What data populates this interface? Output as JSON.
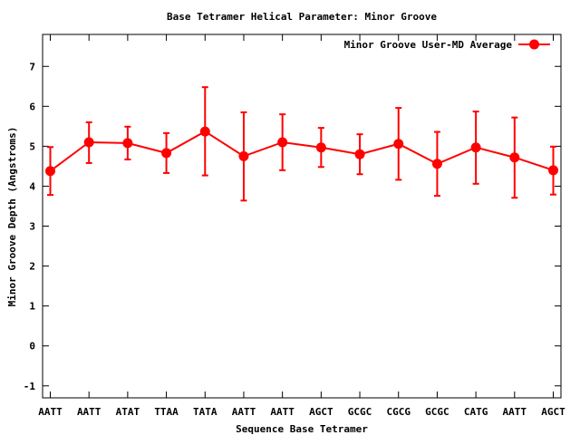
{
  "chart_data": {
    "type": "line",
    "title": "Base Tetramer Helical Parameter: Minor Groove",
    "xlabel": "Sequence Base Tetramer",
    "ylabel": "Minor Groove Depth (Angstroms)",
    "ylim": [
      -1.3,
      7.8
    ],
    "yticks": [
      -1,
      0,
      1,
      2,
      3,
      4,
      5,
      6,
      7
    ],
    "categories": [
      "AATT",
      "AATT",
      "ATAT",
      "TTAA",
      "TATA",
      "AATT",
      "AATT",
      "AGCT",
      "GCGC",
      "CGCG",
      "GCGC",
      "CATG",
      "AATT",
      "AGCT"
    ],
    "series": [
      {
        "name": "Minor Groove User-MD Average",
        "color": "#ff0000",
        "values": [
          4.38,
          5.1,
          5.08,
          4.83,
          5.37,
          4.75,
          5.1,
          4.97,
          4.8,
          5.06,
          4.56,
          4.97,
          4.72,
          4.4
        ],
        "error_low": [
          3.78,
          4.58,
          4.67,
          4.33,
          4.27,
          3.64,
          4.4,
          4.48,
          4.3,
          4.16,
          3.76,
          4.06,
          3.71,
          3.79
        ],
        "error_high": [
          4.98,
          5.6,
          5.49,
          5.33,
          6.48,
          5.85,
          5.8,
          5.46,
          5.3,
          5.96,
          5.36,
          5.87,
          5.72,
          4.99
        ]
      }
    ],
    "legend_position": "top-right",
    "grid": false
  }
}
